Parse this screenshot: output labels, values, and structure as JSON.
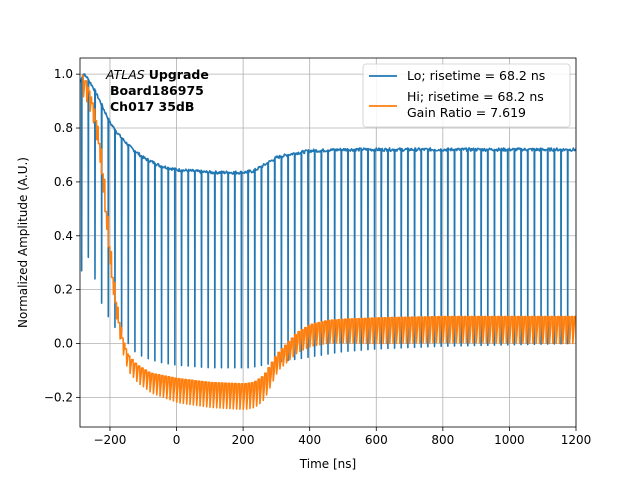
{
  "chart_data": {
    "type": "line",
    "title": "",
    "xlabel": "Time [ns]",
    "ylabel": "Normalized Amplitude (A.U.)",
    "xlim": [
      -290,
      1200
    ],
    "ylim": [
      -0.31,
      1.06
    ],
    "x_ticks": [
      -200,
      0,
      200,
      400,
      600,
      800,
      1000,
      1200
    ],
    "x_tick_labels": [
      "−200",
      "0",
      "200",
      "400",
      "600",
      "800",
      "1000",
      "1200"
    ],
    "y_ticks": [
      -0.2,
      0.0,
      0.2,
      0.4,
      0.6,
      0.8,
      1.0
    ],
    "y_tick_labels": [
      "−0.2",
      "0.0",
      "0.2",
      "0.4",
      "0.6",
      "0.8",
      "1.0"
    ],
    "grid": true,
    "legend_position": "top-right",
    "annotation": {
      "italic": "ATLAS",
      "bold": "Upgrade",
      "line2": "Board186975",
      "line3": "Ch017 35dB"
    },
    "series": [
      {
        "name": "Lo; risetime = 68.2 ns",
        "color": "#1f77b4",
        "spike_period": 20,
        "spike_start": -285,
        "spike_end": 1190,
        "envelope": [
          [
            -290,
            0.97
          ],
          [
            -280,
            1.0
          ],
          [
            -270,
            0.99
          ],
          [
            -250,
            0.95
          ],
          [
            -230,
            0.9
          ],
          [
            -200,
            0.82
          ],
          [
            -170,
            0.77
          ],
          [
            -140,
            0.73
          ],
          [
            -100,
            0.69
          ],
          [
            -50,
            0.66
          ],
          [
            0,
            0.645
          ],
          [
            100,
            0.635
          ],
          [
            200,
            0.635
          ],
          [
            230,
            0.64
          ],
          [
            260,
            0.66
          ],
          [
            300,
            0.69
          ],
          [
            350,
            0.705
          ],
          [
            400,
            0.715
          ],
          [
            500,
            0.72
          ],
          [
            600,
            0.72
          ],
          [
            800,
            0.72
          ],
          [
            1000,
            0.72
          ],
          [
            1200,
            0.72
          ]
        ],
        "spike_min": [
          [
            -285,
            0.27
          ],
          [
            -265,
            0.32
          ],
          [
            -245,
            0.24
          ],
          [
            -225,
            0.15
          ],
          [
            -205,
            0.1
          ],
          [
            -185,
            0.06
          ],
          [
            -165,
            0.04
          ],
          [
            -145,
            0.0
          ],
          [
            -125,
            -0.03
          ],
          [
            -100,
            -0.05
          ],
          [
            -50,
            -0.07
          ],
          [
            0,
            -0.08
          ],
          [
            100,
            -0.09
          ],
          [
            200,
            -0.09
          ],
          [
            220,
            -0.09
          ],
          [
            260,
            -0.08
          ],
          [
            300,
            -0.07
          ],
          [
            400,
            -0.05
          ],
          [
            500,
            -0.03
          ],
          [
            600,
            -0.02
          ],
          [
            800,
            -0.01
          ],
          [
            1000,
            -0.005
          ],
          [
            1190,
            0.0
          ]
        ]
      },
      {
        "name": "Hi; risetime = 68.2 ns\n Gain Ratio = 7.619",
        "legend_lines": [
          "Hi; risetime = 68.2 ns",
          " Gain Ratio = 7.619"
        ],
        "color": "#ff7f0e",
        "spike_period": 10,
        "spike_start": -285,
        "spike_end": 1195,
        "envelope": [
          [
            -290,
            1.0
          ],
          [
            -280,
            0.99
          ],
          [
            -270,
            0.96
          ],
          [
            -250,
            0.87
          ],
          [
            -230,
            0.7
          ],
          [
            -210,
            0.42
          ],
          [
            -200,
            0.3
          ],
          [
            -190,
            0.19
          ],
          [
            -170,
            0.04
          ],
          [
            -150,
            -0.04
          ],
          [
            -120,
            -0.08
          ],
          [
            -80,
            -0.11
          ],
          [
            -40,
            -0.12
          ],
          [
            0,
            -0.13
          ],
          [
            100,
            -0.145
          ],
          [
            200,
            -0.15
          ],
          [
            230,
            -0.145
          ],
          [
            260,
            -0.12
          ],
          [
            280,
            -0.08
          ],
          [
            300,
            -0.04
          ],
          [
            330,
            0.0
          ],
          [
            360,
            0.04
          ],
          [
            400,
            0.07
          ],
          [
            450,
            0.085
          ],
          [
            500,
            0.09
          ],
          [
            600,
            0.095
          ],
          [
            800,
            0.1
          ],
          [
            1000,
            0.1
          ],
          [
            1200,
            0.1
          ]
        ],
        "spike_depth": [
          [
            -290,
            0.08
          ],
          [
            -240,
            0.07
          ],
          [
            -180,
            0.06
          ],
          [
            -100,
            0.07
          ],
          [
            0,
            0.09
          ],
          [
            200,
            0.095
          ],
          [
            250,
            0.09
          ],
          [
            300,
            0.06
          ],
          [
            400,
            0.08
          ],
          [
            600,
            0.095
          ],
          [
            1200,
            0.1
          ]
        ]
      }
    ]
  }
}
